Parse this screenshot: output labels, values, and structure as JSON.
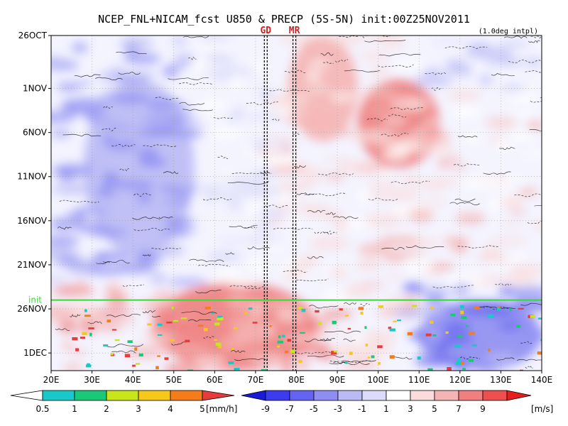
{
  "chart_data": {
    "type": "heatmap",
    "title": "NCEP_FNL+NICAM_fcst U850 & PRECP (5S-5N) init:00Z25NOV2011",
    "subtitle": "(1.0deg intpl)",
    "x_tick_labels": [
      "20E",
      "30E",
      "40E",
      "50E",
      "60E",
      "70E",
      "80E",
      "90E",
      "100E",
      "110E",
      "120E",
      "130E",
      "140E"
    ],
    "x_range_deg": [
      20,
      140
    ],
    "y_tick_labels": [
      "26OCT",
      "1NOV",
      "6NOV",
      "11NOV",
      "16NOV",
      "21NOV",
      "26NOV",
      "1DEC"
    ],
    "y_range_days_from_26oct": [
      0,
      38
    ],
    "y_direction": "time increases downward",
    "grid": "dotted",
    "vertical_markers": [
      {
        "label": "GD",
        "lon": 72.5
      },
      {
        "label": "MR",
        "lon": 79.5
      }
    ],
    "init_line": {
      "label": "init",
      "day_from_26oct": 30,
      "color": "#33dd33"
    },
    "u850_colorbar": {
      "unit": "[m/s]",
      "tick_labels": [
        "-9",
        "-7",
        "-5",
        "-3",
        "-1",
        "1",
        "3",
        "5",
        "7",
        "9"
      ],
      "colors": [
        "#1a1ad9",
        "#3c3cee",
        "#6464f0",
        "#8e8ef2",
        "#babaf5",
        "#dcdcfa",
        "#ffffff",
        "#fadcdc",
        "#f5b4b4",
        "#f08080",
        "#ee5050",
        "#e61e1e"
      ]
    },
    "precip_colorbar": {
      "unit": "[mm/h]",
      "tick_labels": [
        "0.5",
        "1",
        "2",
        "3",
        "4",
        "5"
      ],
      "colors": [
        "#ffffff",
        "#19c8c8",
        "#19c878",
        "#c8e619",
        "#f5c819",
        "#f57d19",
        "#e63c3c"
      ]
    },
    "regions": [
      {
        "desc": "westerly (positive U) band",
        "lon": [
          78,
          95
        ],
        "days": [
          0,
          12
        ],
        "u": 4
      },
      {
        "desc": "westerly maximum",
        "lon": [
          95,
          115
        ],
        "days": [
          5,
          15
        ],
        "u": 6
      },
      {
        "desc": "easterly (negative U) band",
        "lon": [
          28,
          55
        ],
        "days": [
          5,
          25
        ],
        "u": -4
      },
      {
        "desc": "westerly burst after init",
        "lon": [
          45,
          85
        ],
        "days": [
          28,
          38
        ],
        "u": 6
      },
      {
        "desc": "easterly to the east after init",
        "lon": [
          110,
          140
        ],
        "days": [
          30,
          38
        ],
        "u": -5
      }
    ]
  }
}
